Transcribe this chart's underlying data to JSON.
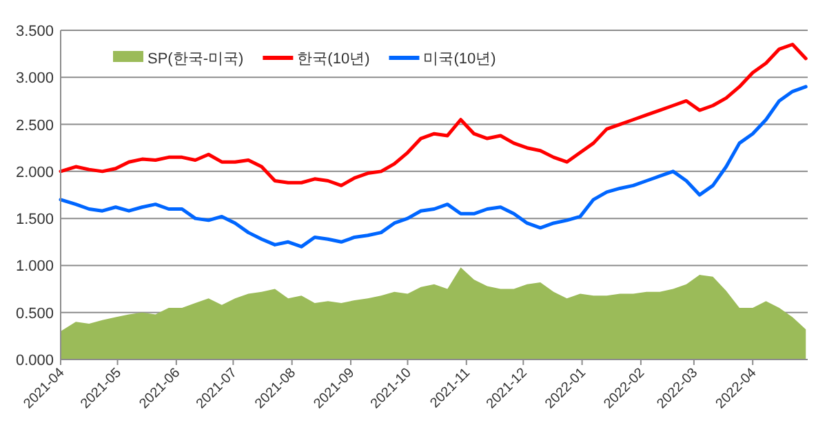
{
  "chart_data": {
    "type": "line",
    "x": [
      "2021-04-01",
      "2021-04-09",
      "2021-04-16",
      "2021-04-23",
      "2021-04-30",
      "2021-05-07",
      "2021-05-14",
      "2021-05-21",
      "2021-05-28",
      "2021-06-04",
      "2021-06-11",
      "2021-06-18",
      "2021-06-25",
      "2021-07-02",
      "2021-07-09",
      "2021-07-16",
      "2021-07-23",
      "2021-07-30",
      "2021-08-06",
      "2021-08-13",
      "2021-08-20",
      "2021-08-27",
      "2021-09-03",
      "2021-09-10",
      "2021-09-17",
      "2021-09-24",
      "2021-10-01",
      "2021-10-08",
      "2021-10-15",
      "2021-10-22",
      "2021-10-29",
      "2021-11-05",
      "2021-11-12",
      "2021-11-19",
      "2021-11-26",
      "2021-12-03",
      "2021-12-10",
      "2021-12-17",
      "2021-12-24",
      "2021-12-31",
      "2022-01-07",
      "2022-01-14",
      "2022-01-21",
      "2022-01-28",
      "2022-02-04",
      "2022-02-11",
      "2022-02-18",
      "2022-02-25",
      "2022-03-04",
      "2022-03-11",
      "2022-03-18",
      "2022-03-25",
      "2022-04-01",
      "2022-04-08",
      "2022-04-15",
      "2022-04-22",
      "2022-04-29"
    ],
    "series": [
      {
        "name": "SP(한국-미국)",
        "type": "area",
        "color": "#9bbb59",
        "values": [
          0.3,
          0.4,
          0.38,
          0.42,
          0.45,
          0.48,
          0.5,
          0.48,
          0.55,
          0.55,
          0.6,
          0.65,
          0.58,
          0.65,
          0.7,
          0.72,
          0.75,
          0.65,
          0.68,
          0.6,
          0.62,
          0.6,
          0.63,
          0.65,
          0.68,
          0.72,
          0.7,
          0.77,
          0.8,
          0.75,
          0.98,
          0.85,
          0.78,
          0.75,
          0.75,
          0.8,
          0.82,
          0.72,
          0.65,
          0.7,
          0.68,
          0.68,
          0.7,
          0.7,
          0.72,
          0.72,
          0.75,
          0.8,
          0.9,
          0.88,
          0.73,
          0.55,
          0.55,
          0.62,
          0.55,
          0.45,
          0.32
        ]
      },
      {
        "name": "한국(10년)",
        "type": "line",
        "color": "#ff0000",
        "values": [
          2.0,
          2.05,
          2.02,
          2.0,
          2.03,
          2.1,
          2.13,
          2.12,
          2.15,
          2.15,
          2.12,
          2.18,
          2.1,
          2.1,
          2.12,
          2.05,
          1.9,
          1.88,
          1.88,
          1.92,
          1.9,
          1.85,
          1.93,
          1.98,
          2.0,
          2.08,
          2.2,
          2.35,
          2.4,
          2.38,
          2.55,
          2.4,
          2.35,
          2.38,
          2.3,
          2.25,
          2.22,
          2.15,
          2.1,
          2.2,
          2.3,
          2.45,
          2.5,
          2.55,
          2.6,
          2.65,
          2.7,
          2.75,
          2.65,
          2.7,
          2.78,
          2.9,
          3.05,
          3.15,
          3.3,
          3.35,
          3.2
        ]
      },
      {
        "name": "미국(10년)",
        "type": "line",
        "color": "#0066ff",
        "values": [
          1.7,
          1.65,
          1.6,
          1.58,
          1.62,
          1.58,
          1.62,
          1.65,
          1.6,
          1.6,
          1.5,
          1.48,
          1.52,
          1.45,
          1.35,
          1.28,
          1.22,
          1.25,
          1.2,
          1.3,
          1.28,
          1.25,
          1.3,
          1.32,
          1.35,
          1.45,
          1.5,
          1.58,
          1.6,
          1.65,
          1.55,
          1.55,
          1.6,
          1.62,
          1.55,
          1.45,
          1.4,
          1.45,
          1.48,
          1.52,
          1.7,
          1.78,
          1.82,
          1.85,
          1.9,
          1.95,
          2.0,
          1.9,
          1.75,
          1.85,
          2.05,
          2.3,
          2.4,
          2.55,
          2.75,
          2.85,
          2.9
        ]
      }
    ],
    "xlim": [
      "2021-04-01",
      "2022-04-30"
    ],
    "xticks": [
      "2021-04",
      "2021-05",
      "2021-06",
      "2021-07",
      "2021-08",
      "2021-09",
      "2021-10",
      "2021-11",
      "2021-12",
      "2022-01",
      "2022-02",
      "2022-03",
      "2022-04"
    ],
    "ylim": [
      0,
      3.5
    ],
    "yticks": [
      {
        "value": 0,
        "label": "0.000"
      },
      {
        "value": 0.5,
        "label": "0.500"
      },
      {
        "value": 1,
        "label": "1.000"
      },
      {
        "value": 1.5,
        "label": "1.500"
      },
      {
        "value": 2,
        "label": "2.000"
      },
      {
        "value": 2.5,
        "label": "2.500"
      },
      {
        "value": 3,
        "label": "3.000"
      },
      {
        "value": 3.5,
        "label": "3.500"
      }
    ],
    "grid": "y",
    "legend": "top"
  }
}
